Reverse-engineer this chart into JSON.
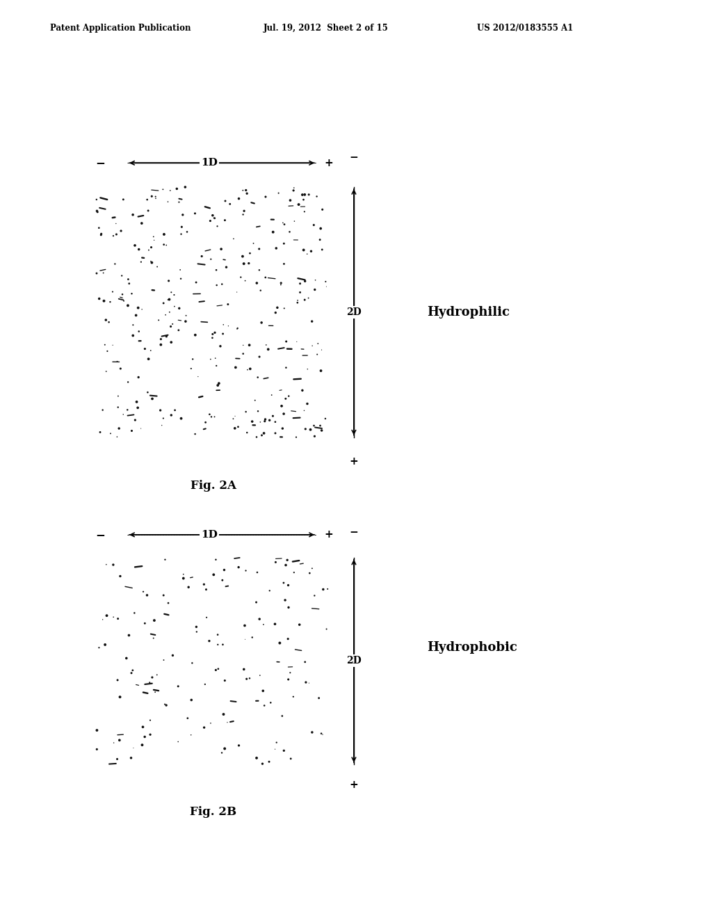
{
  "header_left": "Patent Application Publication",
  "header_mid": "Jul. 19, 2012  Sheet 2 of 15",
  "header_right": "US 2012/0183555 A1",
  "fig2a_label": "Fig. 2A",
  "fig2b_label": "Fig. 2B",
  "label_1d": "1D",
  "label_2d": "2D",
  "label_hydrophilic": "Hydrophilic",
  "label_hydrophobic": "Hydrophobic",
  "bg_color": "#ffffff",
  "dot_color": "#111111",
  "seed_a": 42,
  "seed_b": 99,
  "n_dots_a": 280,
  "n_dots_b": 130
}
